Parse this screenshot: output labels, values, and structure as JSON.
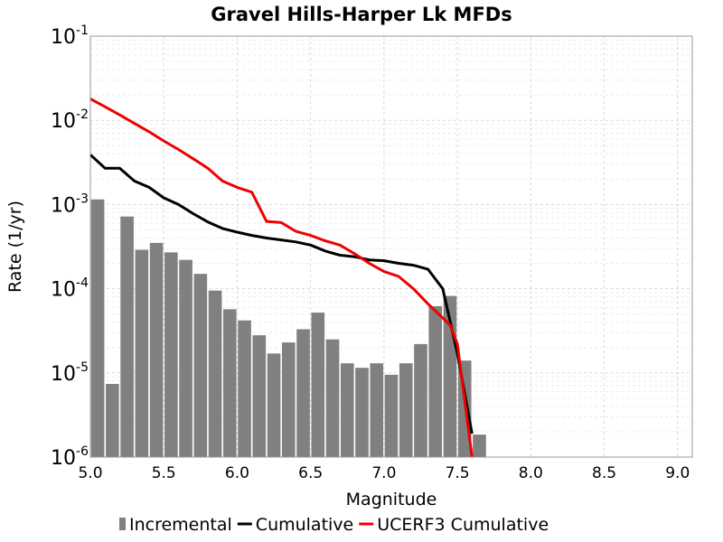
{
  "chart_data": {
    "type": "bar",
    "title": "Gravel Hills-Harper Lk MFDs",
    "xlabel": "Magnitude",
    "ylabel": "Rate (1/yr)",
    "xlim": [
      5.0,
      9.1
    ],
    "ylim": [
      1e-06,
      0.1
    ],
    "yscale": "log",
    "grid": true,
    "legend_position": "bottom",
    "x_ticks": [
      "5.0",
      "5.5",
      "6.0",
      "6.5",
      "7.0",
      "7.5",
      "8.0",
      "8.5",
      "9.0"
    ],
    "y_ticks": [
      {
        "base": "10",
        "exp": "-6"
      },
      {
        "base": "10",
        "exp": "-5"
      },
      {
        "base": "10",
        "exp": "-4"
      },
      {
        "base": "10",
        "exp": "-3"
      },
      {
        "base": "10",
        "exp": "-2"
      },
      {
        "base": "10",
        "exp": "-1"
      }
    ],
    "series": [
      {
        "name": "Incremental",
        "kind": "bar",
        "color": "#808080",
        "bar_width": 0.09,
        "x": [
          5.05,
          5.15,
          5.25,
          5.35,
          5.45,
          5.55,
          5.65,
          5.75,
          5.85,
          5.95,
          6.05,
          6.15,
          6.25,
          6.35,
          6.45,
          6.55,
          6.65,
          6.75,
          6.85,
          6.95,
          7.05,
          7.15,
          7.25,
          7.35,
          7.45,
          7.55,
          7.65
        ],
        "y": [
          0.00115,
          7.4e-06,
          0.00072,
          0.00029,
          0.00035,
          0.00027,
          0.00022,
          0.00015,
          9.5e-05,
          5.7e-05,
          4.2e-05,
          2.8e-05,
          1.7e-05,
          2.3e-05,
          3.3e-05,
          5.2e-05,
          2.5e-05,
          1.3e-05,
          1.15e-05,
          1.3e-05,
          9.5e-06,
          1.3e-05,
          2.2e-05,
          6.2e-05,
          8.2e-05,
          1.4e-05,
          1.85e-06
        ]
      },
      {
        "name": "Cumulative",
        "kind": "line",
        "color": "#000000",
        "x": [
          5.0,
          5.1,
          5.2,
          5.3,
          5.4,
          5.5,
          5.6,
          5.7,
          5.8,
          5.9,
          6.0,
          6.1,
          6.2,
          6.3,
          6.4,
          6.5,
          6.6,
          6.7,
          6.8,
          6.9,
          7.0,
          7.1,
          7.2,
          7.3,
          7.4,
          7.5,
          7.6
        ],
        "y": [
          0.0039,
          0.0027,
          0.0027,
          0.0019,
          0.0016,
          0.0012,
          0.001,
          0.00078,
          0.00062,
          0.00052,
          0.00047,
          0.00043,
          0.0004,
          0.00038,
          0.00036,
          0.00033,
          0.00028,
          0.00025,
          0.00024,
          0.00022,
          0.000215,
          0.0002,
          0.00019,
          0.00017,
          0.0001,
          1.7e-05,
          1.9e-06
        ]
      },
      {
        "name": "UCERF3 Cumulative",
        "kind": "line",
        "color": "#ee0000",
        "x": [
          5.0,
          5.1,
          5.2,
          5.3,
          5.4,
          5.5,
          5.6,
          5.7,
          5.8,
          5.9,
          6.0,
          6.1,
          6.2,
          6.3,
          6.4,
          6.5,
          6.6,
          6.7,
          6.8,
          6.9,
          7.0,
          7.1,
          7.2,
          7.3,
          7.4,
          7.45,
          7.5,
          7.6
        ],
        "y": [
          0.018,
          0.0145,
          0.0116,
          0.0092,
          0.0073,
          0.0057,
          0.0045,
          0.0035,
          0.0027,
          0.0019,
          0.0016,
          0.0014,
          0.00063,
          0.00061,
          0.00048,
          0.00043,
          0.00037,
          0.00033,
          0.00026,
          0.0002,
          0.00016,
          0.00014,
          0.0001,
          6.6e-05,
          4.5e-05,
          3.7e-05,
          2.2e-05,
          1e-06
        ]
      }
    ]
  }
}
